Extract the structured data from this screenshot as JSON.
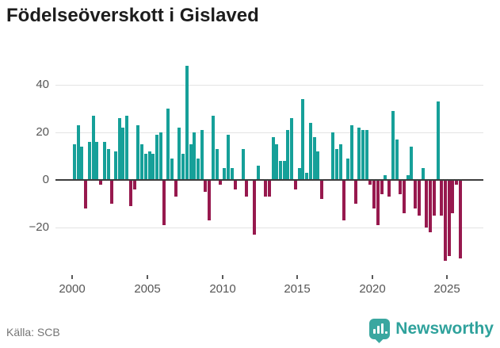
{
  "title": "Födelseöverskott i Gislaved",
  "source": "Källa: SCB",
  "brand": {
    "name": "Newsworthy",
    "color": "#3aa7a0"
  },
  "chart_data": {
    "type": "bar",
    "title": "Födelseöverskott i Gislaved",
    "xlabel": "",
    "ylabel": "",
    "y_ticks": [
      40,
      20,
      0,
      -20
    ],
    "y_tick_labels": [
      "40",
      "20",
      "0",
      "−20"
    ],
    "x_tick_labels": [
      "2000",
      "2005",
      "2010",
      "2015",
      "2020",
      "2025"
    ],
    "ylim": [
      -38,
      50
    ],
    "grid": true,
    "legend": "none",
    "positive_color": "#16a099",
    "negative_color": "#97194e",
    "categories": [
      "2000 Q1",
      "2000 Q2",
      "2000 Q3",
      "2000 Q4",
      "2001 Q1",
      "2001 Q2",
      "2001 Q3",
      "2001 Q4",
      "2002 Q1",
      "2002 Q2",
      "2002 Q3",
      "2002 Q4",
      "2003 Q1",
      "2003 Q2",
      "2003 Q3",
      "2003 Q4",
      "2004 Q1",
      "2004 Q2",
      "2004 Q3",
      "2004 Q4",
      "2005 Q1",
      "2005 Q2",
      "2005 Q3",
      "2005 Q4",
      "2006 Q1",
      "2006 Q2",
      "2006 Q3",
      "2006 Q4",
      "2007 Q1",
      "2007 Q2",
      "2007 Q3",
      "2007 Q4",
      "2008 Q1",
      "2008 Q2",
      "2008 Q3",
      "2008 Q4",
      "2009 Q1",
      "2009 Q2",
      "2009 Q3",
      "2009 Q4",
      "2010 Q1",
      "2010 Q2",
      "2010 Q3",
      "2010 Q4",
      "2011 Q1",
      "2011 Q2",
      "2011 Q3",
      "2011 Q4",
      "2012 Q1",
      "2012 Q2",
      "2012 Q3",
      "2012 Q4",
      "2013 Q1",
      "2013 Q2",
      "2013 Q3",
      "2013 Q4",
      "2014 Q1",
      "2014 Q2",
      "2014 Q3",
      "2014 Q4",
      "2015 Q1",
      "2015 Q2",
      "2015 Q3",
      "2015 Q4",
      "2016 Q1",
      "2016 Q2",
      "2016 Q3",
      "2016 Q4",
      "2017 Q1",
      "2017 Q2",
      "2017 Q3",
      "2017 Q4",
      "2018 Q1",
      "2018 Q2",
      "2018 Q3",
      "2018 Q4",
      "2019 Q1",
      "2019 Q2",
      "2019 Q3",
      "2019 Q4",
      "2020 Q1",
      "2020 Q2",
      "2020 Q3",
      "2020 Q4",
      "2021 Q1",
      "2021 Q2",
      "2021 Q3",
      "2021 Q4",
      "2022 Q1",
      "2022 Q2",
      "2022 Q3",
      "2022 Q4",
      "2023 Q1",
      "2023 Q2",
      "2023 Q3",
      "2023 Q4",
      "2024 Q1",
      "2024 Q2",
      "2024 Q3",
      "2024 Q4",
      "2025 Q1",
      "2025 Q2",
      "2025 Q3",
      "2025 Q4"
    ],
    "values": [
      15,
      23,
      14,
      -12,
      16,
      27,
      16,
      -2,
      16,
      13,
      -10,
      12,
      26,
      22,
      27,
      -11,
      -4,
      23,
      15,
      11,
      12,
      11,
      19,
      20,
      -19,
      30,
      9,
      -7,
      22,
      11,
      48,
      15,
      20,
      9,
      21,
      -5,
      -17,
      27,
      13,
      -2,
      5,
      19,
      5,
      -4,
      0,
      13,
      -7,
      0,
      -23,
      6,
      0,
      -7,
      -7,
      18,
      15,
      8,
      8,
      21,
      26,
      -4,
      5,
      34,
      3,
      24,
      18,
      12,
      -8,
      0,
      0,
      20,
      13,
      15,
      -17,
      9,
      23,
      -10,
      22,
      21,
      21,
      -2,
      -12,
      -19,
      -6,
      2,
      -7,
      29,
      17,
      -6,
      -14,
      2,
      14,
      -12,
      -15,
      5,
      -20,
      -22,
      -15,
      33,
      -15,
      -34,
      -32,
      -14,
      -2,
      -33
    ]
  }
}
